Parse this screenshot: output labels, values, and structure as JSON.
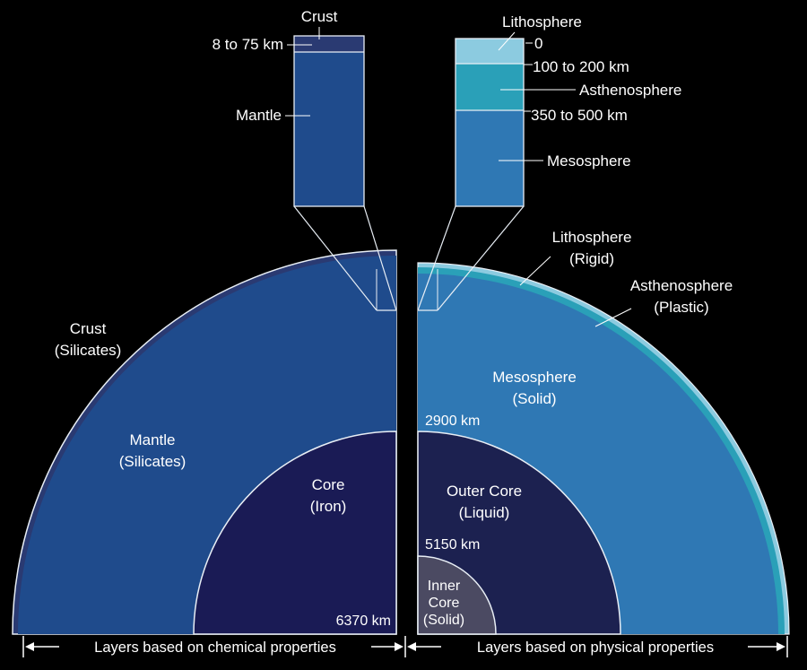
{
  "colors": {
    "background": "#000000",
    "crust": "#2a3a72",
    "mantle": "#1f4b8c",
    "core_iron": "#1a1b55",
    "outer_core": "#1c2150",
    "inner_core": "#4b4a62",
    "lithosphere": "#8ccbe0",
    "asthenosphere": "#2aa0b8",
    "mesosphere": "#2f78b4",
    "outline": "#e8eef5"
  },
  "chemical": {
    "inset": {
      "crust_label": "Crust",
      "crust_depth": "8 to 75 km",
      "mantle_label": "Mantle"
    },
    "crust": {
      "name": "Crust",
      "composition": "(Silicates)"
    },
    "mantle": {
      "name": "Mantle",
      "composition": "(Silicates)"
    },
    "core": {
      "name": "Core",
      "composition": "(Iron)"
    },
    "radius_label": "6370 km",
    "caption": "Layers based on chemical properties"
  },
  "physical": {
    "inset": {
      "lithosphere_label": "Lithosphere",
      "depth_0": "0",
      "depth_100_200": "100 to 200 km",
      "asthenosphere_label": "Asthenosphere",
      "depth_350_500": "350 to 500 km",
      "mesosphere_label": "Mesosphere"
    },
    "lithosphere": {
      "name": "Lithosphere",
      "state": "(Rigid)"
    },
    "asthenosphere": {
      "name": "Asthenosphere",
      "state": "(Plastic)"
    },
    "mesosphere": {
      "name": "Mesosphere",
      "state": "(Solid)"
    },
    "depth_2900": "2900 km",
    "outer_core": {
      "name": "Outer Core",
      "state": "(Liquid)"
    },
    "depth_5150": "5150 km",
    "inner_core": {
      "line1": "Inner",
      "line2": "Core",
      "state": "(Solid)"
    },
    "caption": "Layers based on physical properties"
  }
}
